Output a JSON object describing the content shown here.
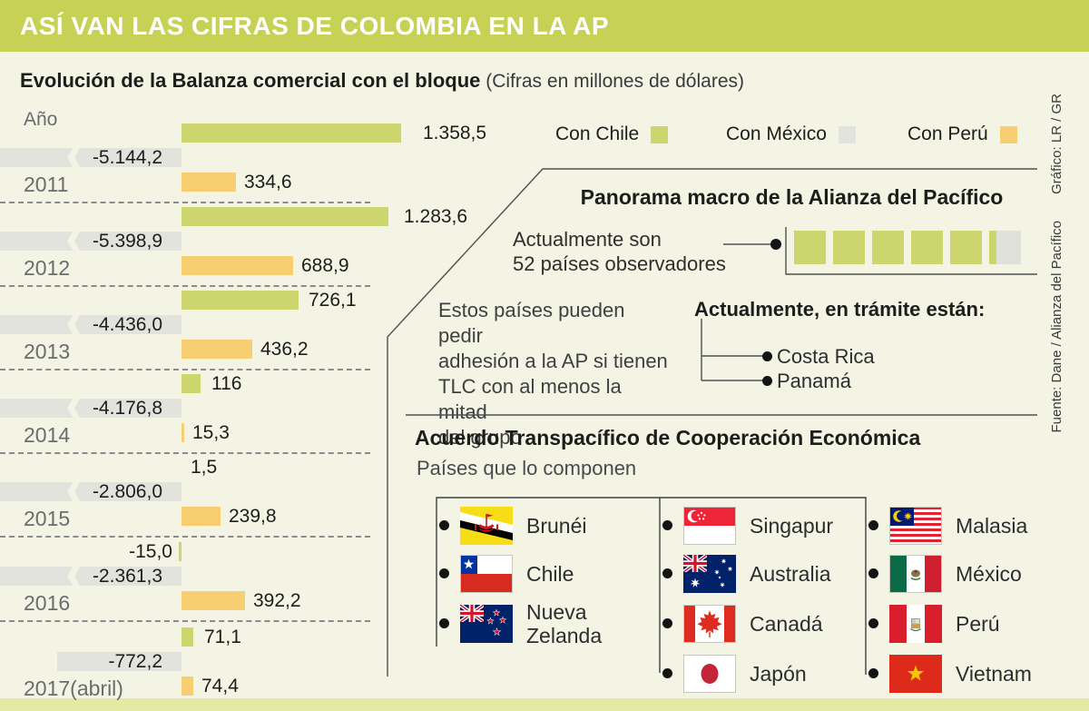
{
  "header": {
    "title": "ASÍ VAN LAS CIFRAS DE COLOMBIA EN LA AP"
  },
  "subtitle": {
    "bold": "Evolución de la Balanza comercial con el bloque",
    "normal": "(Cifras en millones de dólares)"
  },
  "chart": {
    "axis_label": "Año"
  },
  "chart_data": {
    "type": "bar",
    "orientation": "horizontal",
    "title": "Evolución de la Balanza comercial con el bloque",
    "units": "Cifras en millones de dólares",
    "categories": [
      "2011",
      "2012",
      "2013",
      "2014",
      "2015",
      "2016",
      "2017(abril)"
    ],
    "series": [
      {
        "name": "Con Chile",
        "color": "#cdd56f",
        "values": [
          1358.5,
          1283.6,
          726.1,
          116,
          1.5,
          -15.0,
          71.1
        ],
        "labels": [
          "1.358,5",
          "1.283,6",
          "726,1",
          "116",
          "1,5",
          "-15,0",
          "71,1"
        ]
      },
      {
        "name": "Con México",
        "color": "#e3e3dd",
        "values": [
          -5144.2,
          -5398.9,
          -4436.0,
          -4176.8,
          -2806.0,
          -2361.3,
          -772.2
        ],
        "labels": [
          "-5.144,2",
          "-5.398,9",
          "-4.436,0",
          "-4.176,8",
          "-2.806,0",
          "-2.361,3",
          "-772,2"
        ]
      },
      {
        "name": "Con Perú",
        "color": "#f7cf72",
        "values": [
          334.6,
          688.9,
          436.2,
          15.3,
          239.8,
          392.2,
          74.4
        ],
        "labels": [
          "334,6",
          "688,9",
          "436,2",
          "15,3",
          "239,8",
          "392,2",
          "74,4"
        ]
      }
    ],
    "axis_label": "Año",
    "legend_position": "top-right",
    "grid": false
  },
  "panorama": {
    "title": "Panorama macro de la Alianza del Pacífico",
    "observers": "Actualmente son\n52 países observadores",
    "observer_squares_total": 6,
    "note": "Estos países pueden pedir\nadhesión a la AP si tienen\nTLC con al menos la mitad\ndel grupo",
    "pending_title": "Actualmente, en trámite están:",
    "pending": [
      "Costa Rica",
      "Panamá"
    ]
  },
  "acuerdo": {
    "title": "Acuerdo Transpacífico de Cooperación Económica",
    "subtitle": "Países que lo componen",
    "columns": [
      [
        {
          "name": "Brunéi",
          "flag": "brunei"
        },
        {
          "name": "Chile",
          "flag": "chile"
        },
        {
          "name": "Nueva Zelanda",
          "flag": "nueva-zelanda"
        }
      ],
      [
        {
          "name": "Singapur",
          "flag": "singapur"
        },
        {
          "name": "Australia",
          "flag": "australia"
        },
        {
          "name": "Canadá",
          "flag": "canada"
        },
        {
          "name": "Japón",
          "flag": "japon"
        }
      ],
      [
        {
          "name": "Malasia",
          "flag": "malasia"
        },
        {
          "name": "México",
          "flag": "mexico"
        },
        {
          "name": "Perú",
          "flag": "peru"
        },
        {
          "name": "Vietnam",
          "flag": "vietnam"
        }
      ]
    ]
  },
  "credits": {
    "graphic": "Gráfico: LR / GR",
    "source": "Fuente: Dane / Alianza del Pacífico"
  },
  "colors": {
    "header_bar": "#c7d156",
    "background": "#f3f4e3",
    "chile_bar": "#cdd56f",
    "mexico_bar": "#e3e3dd",
    "peru_bar": "#f7cf72",
    "bottom_strip": "#e6e9a4",
    "line": "#4f4f51"
  }
}
